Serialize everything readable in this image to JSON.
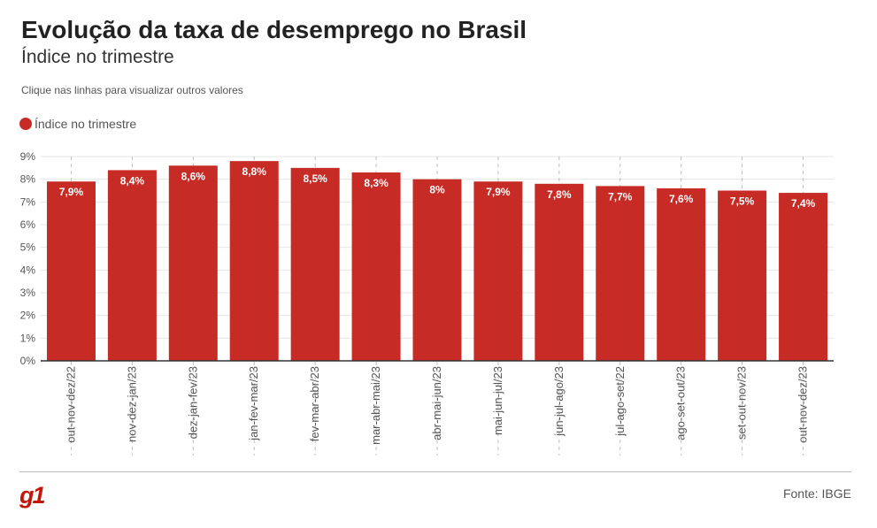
{
  "header": {
    "title": "Evolução da taxa de desemprego no Brasil",
    "subtitle": "Índice no trimestre",
    "hint": "Clique nas linhas para visualizar outros valores"
  },
  "colors": {
    "bar": "#c62b25",
    "brand": "#c4170c",
    "grid": "#e6e6e6",
    "dash": "#bdbdbd"
  },
  "chart_data": {
    "type": "bar",
    "categories": [
      "out-nov-dez/22",
      "nov-dez-jan/23",
      "dez-jan-fev/23",
      "jan-fev-mar/23",
      "fev-mar-abr/23",
      "mar-abr-mai/23",
      "abr-mai-jun/23",
      "mai-jun-jul/23",
      "jun-jul-ago/23",
      "jul-ago-set/22",
      "ago-set-out/23",
      "set-out-nov/23",
      "out-nov-dez/23"
    ],
    "series": [
      {
        "name": "Índice no trimestre",
        "values": [
          7.9,
          8.4,
          8.6,
          8.8,
          8.5,
          8.3,
          8.0,
          7.9,
          7.8,
          7.7,
          7.6,
          7.5,
          7.4
        ],
        "labels": [
          "7,9%",
          "8,4%",
          "8,6%",
          "8,8%",
          "8,5%",
          "8,3%",
          "8%",
          "7,9%",
          "7,8%",
          "7,7%",
          "7,6%",
          "7,5%",
          "7,4%"
        ]
      }
    ],
    "yticks": [
      0,
      1,
      2,
      3,
      4,
      5,
      6,
      7,
      8,
      9
    ],
    "ytick_labels": [
      "0%",
      "1%",
      "2%",
      "3%",
      "4%",
      "5%",
      "6%",
      "7%",
      "8%",
      "9%"
    ],
    "ylim": [
      0,
      9
    ],
    "grid": true,
    "legend": "top-left"
  },
  "footer": {
    "brand": "g1",
    "source": "Fonte: IBGE"
  }
}
